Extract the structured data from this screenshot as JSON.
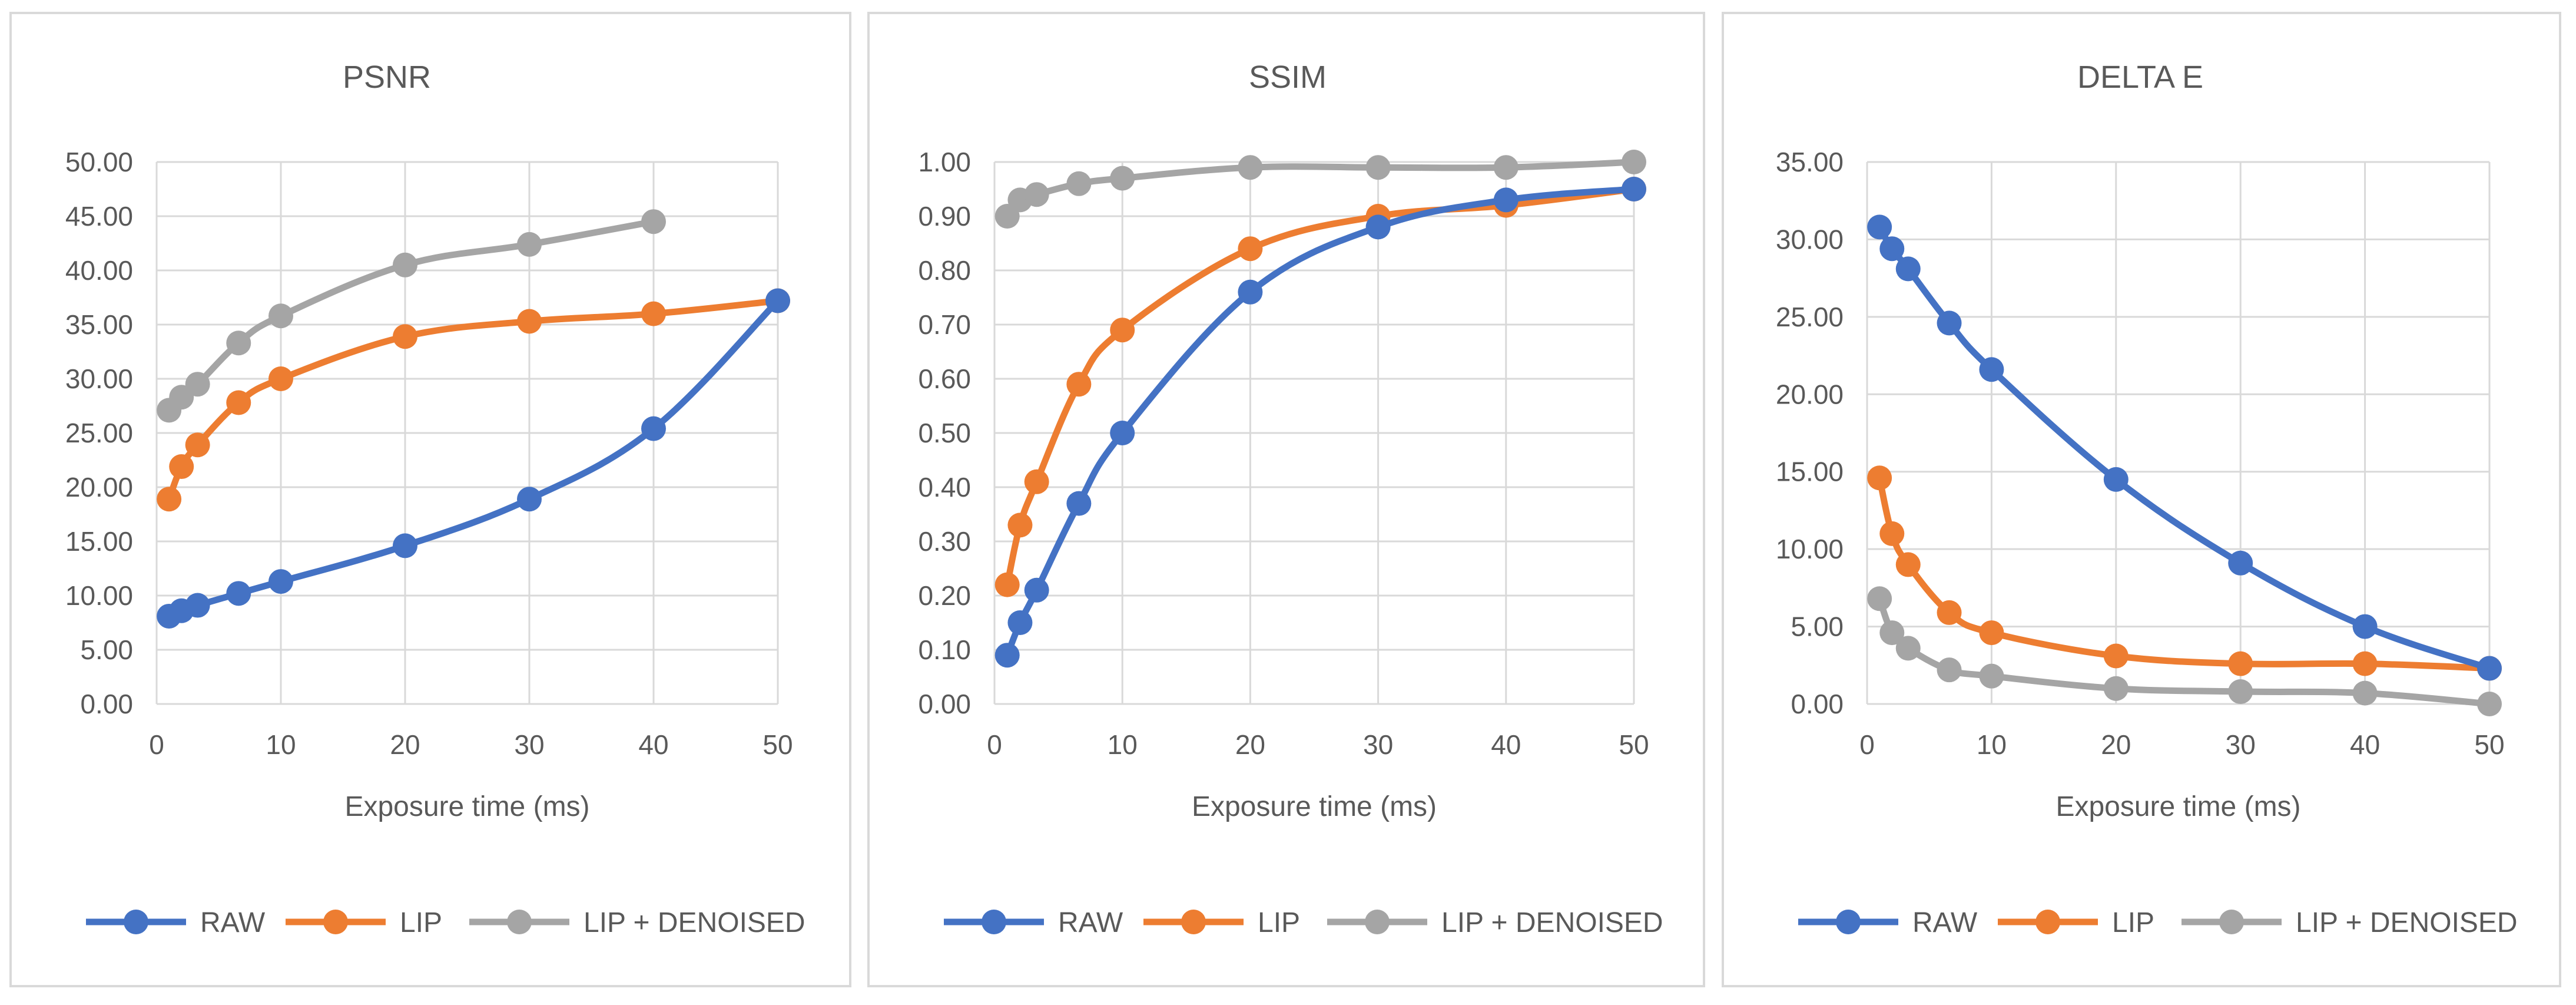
{
  "colors": {
    "raw": "#4472c4",
    "lip": "#ed7d31",
    "lip_denoised": "#a5a5a5",
    "grid": "#d9d9d9",
    "text": "#595959"
  },
  "chart_data": [
    {
      "type": "line",
      "title": "PSNR",
      "xlabel": "Exposure time (ms)",
      "ylabel": "",
      "xlim": [
        0,
        50
      ],
      "ylim": [
        0,
        50
      ],
      "grid": true,
      "legend": "bottom",
      "x_ticks": [
        "0",
        "10",
        "20",
        "30",
        "40",
        "50"
      ],
      "y_ticks": [
        "0.00",
        "5.00",
        "10.00",
        "15.00",
        "20.00",
        "25.00",
        "30.00",
        "35.00",
        "40.00",
        "45.00",
        "50.00"
      ],
      "series": [
        {
          "name": "RAW",
          "key": "raw",
          "x": [
            1,
            2,
            3.3,
            6.6,
            10,
            20,
            30,
            40,
            50
          ],
          "y": [
            8.1,
            8.6,
            9.1,
            10.2,
            11.3,
            14.6,
            18.9,
            25.4,
            37.2
          ]
        },
        {
          "name": "LIP",
          "key": "lip",
          "x": [
            1,
            2,
            3.3,
            6.6,
            10,
            20,
            30,
            40,
            50
          ],
          "y": [
            18.9,
            21.9,
            23.9,
            27.8,
            30.0,
            33.9,
            35.3,
            36.0,
            37.2
          ]
        },
        {
          "name": "LIP + DENOISED",
          "key": "lip_denoised",
          "x": [
            1,
            2,
            3.3,
            6.6,
            10,
            20,
            30,
            40
          ],
          "y": [
            27.1,
            28.3,
            29.5,
            33.3,
            35.8,
            40.5,
            42.4,
            44.5
          ]
        }
      ]
    },
    {
      "type": "line",
      "title": "SSIM",
      "xlabel": "Exposure time (ms)",
      "ylabel": "",
      "xlim": [
        0,
        50
      ],
      "ylim": [
        0,
        1
      ],
      "grid": true,
      "legend": "bottom",
      "x_ticks": [
        "0",
        "10",
        "20",
        "30",
        "40",
        "50"
      ],
      "y_ticks": [
        "0.00",
        "0.10",
        "0.20",
        "0.30",
        "0.40",
        "0.50",
        "0.60",
        "0.70",
        "0.80",
        "0.90",
        "1.00"
      ],
      "series": [
        {
          "name": "RAW",
          "key": "raw",
          "x": [
            1,
            2,
            3.3,
            6.6,
            10,
            20,
            30,
            40,
            50
          ],
          "y": [
            0.09,
            0.15,
            0.21,
            0.37,
            0.5,
            0.76,
            0.88,
            0.93,
            0.95
          ]
        },
        {
          "name": "LIP",
          "key": "lip",
          "x": [
            1,
            2,
            3.3,
            6.6,
            10,
            20,
            30,
            40,
            50
          ],
          "y": [
            0.22,
            0.33,
            0.41,
            0.59,
            0.69,
            0.84,
            0.9,
            0.92,
            0.95
          ]
        },
        {
          "name": "LIP + DENOISED",
          "key": "lip_denoised",
          "x": [
            1,
            2,
            3.3,
            6.6,
            10,
            20,
            30,
            40,
            50
          ],
          "y": [
            0.9,
            0.93,
            0.94,
            0.96,
            0.97,
            0.99,
            0.99,
            0.99,
            1.0
          ]
        }
      ]
    },
    {
      "type": "line",
      "title": "DELTA E",
      "xlabel": "Exposure time (ms)",
      "ylabel": "",
      "xlim": [
        0,
        50
      ],
      "ylim": [
        0,
        35
      ],
      "grid": true,
      "legend": "bottom",
      "x_ticks": [
        "0",
        "10",
        "20",
        "30",
        "40",
        "50"
      ],
      "y_ticks": [
        "0.00",
        "5.00",
        "10.00",
        "15.00",
        "20.00",
        "25.00",
        "30.00",
        "35.00"
      ],
      "series": [
        {
          "name": "RAW",
          "key": "raw",
          "x": [
            1,
            2,
            3.3,
            6.6,
            10,
            20,
            30,
            40,
            50
          ],
          "y": [
            30.8,
            29.4,
            28.1,
            24.6,
            21.6,
            14.5,
            9.1,
            5.0,
            2.3
          ]
        },
        {
          "name": "LIP",
          "key": "lip",
          "x": [
            1,
            2,
            3.3,
            6.6,
            10,
            20,
            30,
            40,
            50
          ],
          "y": [
            14.6,
            11.0,
            9.0,
            5.9,
            4.6,
            3.1,
            2.6,
            2.6,
            2.3
          ]
        },
        {
          "name": "LIP + DENOISED",
          "key": "lip_denoised",
          "x": [
            1,
            2,
            3.3,
            6.6,
            10,
            20,
            30,
            40,
            50
          ],
          "y": [
            6.8,
            4.6,
            3.6,
            2.2,
            1.8,
            1.0,
            0.8,
            0.7,
            0.0
          ]
        }
      ]
    }
  ]
}
